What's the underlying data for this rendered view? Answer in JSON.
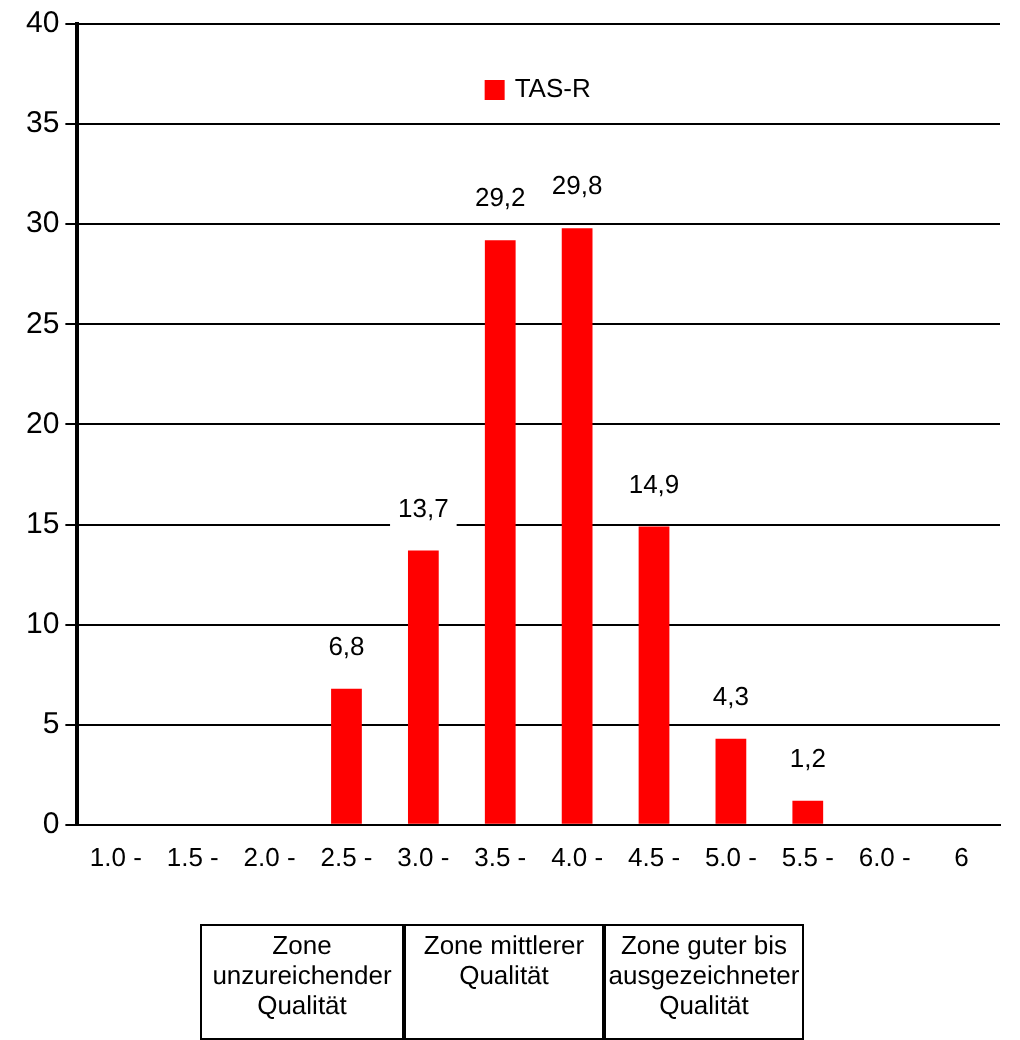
{
  "chart_data": {
    "type": "bar",
    "categories": [
      "1.0 -",
      "1.5 -",
      "2.0 -",
      "2.5 -",
      "3.0 -",
      "3.5 -",
      "4.0 -",
      "4.5 -",
      "5.0 -",
      "5.5 -",
      "6.0 -",
      "6"
    ],
    "series": [
      {
        "name": "TAS-R",
        "color": "#ff0000",
        "values": [
          null,
          null,
          null,
          6.8,
          13.7,
          29.2,
          29.8,
          14.9,
          4.3,
          1.2,
          null,
          null
        ]
      }
    ],
    "value_labels": [
      null,
      null,
      null,
      "6,8",
      "13,7",
      "29,2",
      "29,8",
      "14,9",
      "4,3",
      "1,2",
      null,
      null
    ],
    "ylim": [
      0,
      40
    ],
    "yticks": [
      0,
      5,
      10,
      15,
      20,
      25,
      30,
      35,
      40
    ],
    "grid": "y",
    "legend": "top",
    "annotations": [
      "Zone unzureichender Qualität",
      "Zone mittlerer Qualität",
      "Zone guter bis ausgezeichneter Qualität"
    ]
  }
}
